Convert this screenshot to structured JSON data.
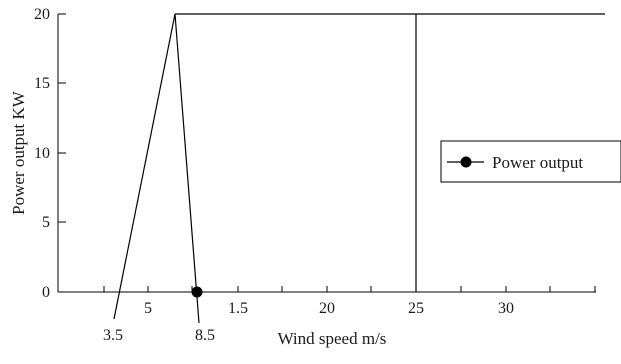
{
  "chart_data": {
    "type": "line",
    "title": "",
    "xlabel": "Wind speed m/s",
    "ylabel": "Power output KW",
    "ylim": [
      0,
      20
    ],
    "y_ticks": [
      "0",
      "5",
      "10",
      "15",
      "20"
    ],
    "x_tick_labels": [
      "5",
      "1.5",
      "20",
      "25",
      "30"
    ],
    "x_annotations": [
      "3.5",
      "8.5"
    ],
    "series": [
      {
        "name": "Power output",
        "marker": "filled-circle",
        "color": "#000000"
      }
    ],
    "legend_position": "right",
    "grid": false
  }
}
